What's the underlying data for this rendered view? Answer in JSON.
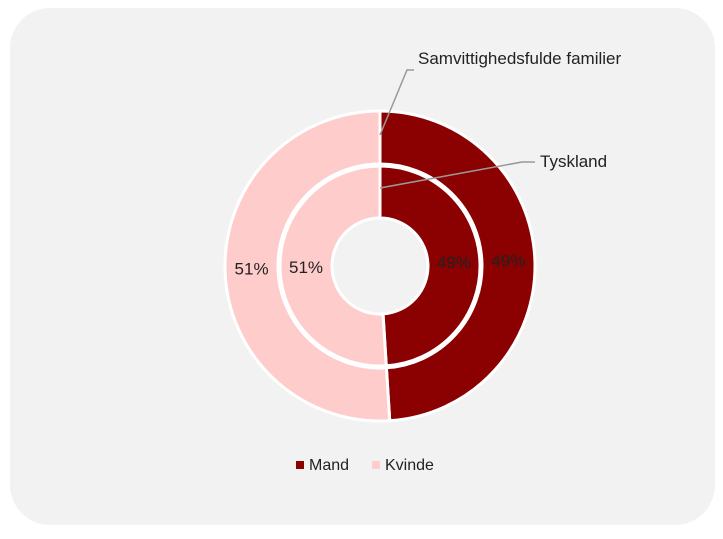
{
  "chart_data": {
    "type": "donut",
    "categories": [
      "Mand",
      "Kvinde"
    ],
    "colors": [
      "#8b0000",
      "#ffcccc"
    ],
    "series": [
      {
        "name": "Samvittighedsfulde familier",
        "values": [
          49,
          51
        ],
        "value_labels": [
          "49%",
          "51%"
        ]
      },
      {
        "name": "Tyskland",
        "values": [
          49,
          51
        ],
        "value_labels": [
          "49%",
          "51%"
        ]
      }
    ],
    "legend": "bottom"
  }
}
